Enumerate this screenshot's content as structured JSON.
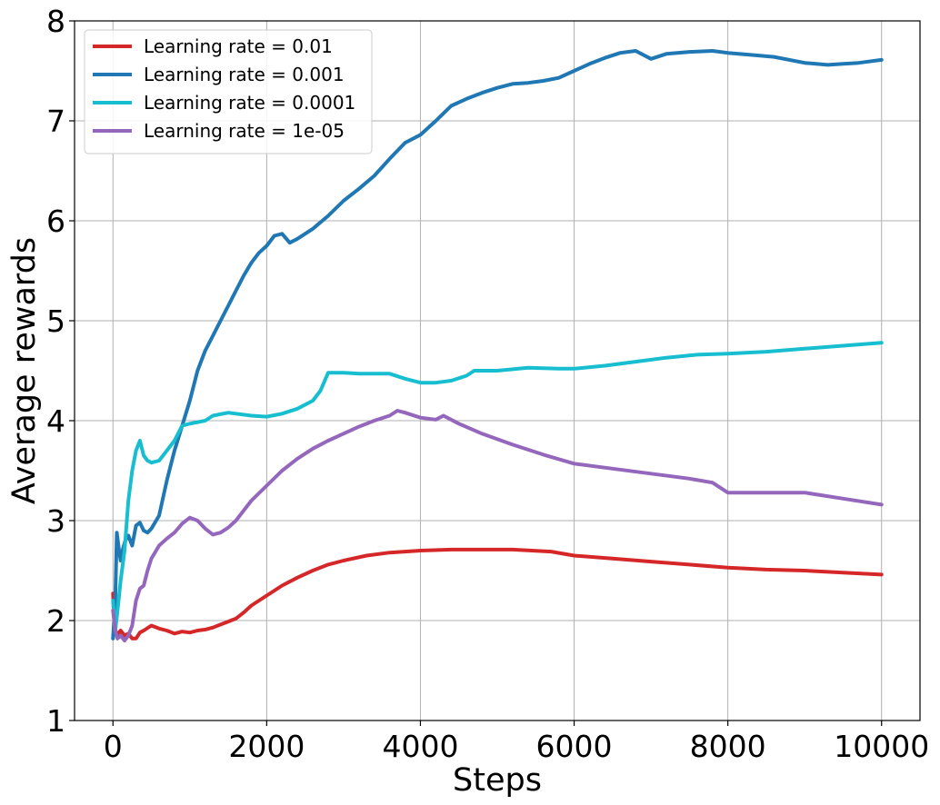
{
  "chart_data": {
    "type": "line",
    "title": "",
    "xlabel": "Steps",
    "ylabel": "Average rewards",
    "xlim": [
      -500,
      10500
    ],
    "ylim": [
      1,
      8
    ],
    "xticks": [
      0,
      2000,
      4000,
      6000,
      8000,
      10000
    ],
    "xtick_labels": [
      "0",
      "2000",
      "4000",
      "6000",
      "8000",
      "10000"
    ],
    "yticks": [
      1,
      2,
      3,
      4,
      5,
      6,
      7,
      8
    ],
    "ytick_labels": [
      "1",
      "2",
      "3",
      "4",
      "5",
      "6",
      "7",
      "8"
    ],
    "grid": true,
    "legend_position": "top-left",
    "series": [
      {
        "name": "Learning rate = 0.01",
        "color": "#d62728",
        "points": [
          [
            0,
            2.27
          ],
          [
            20,
            1.95
          ],
          [
            50,
            1.85
          ],
          [
            100,
            1.9
          ],
          [
            150,
            1.85
          ],
          [
            200,
            1.87
          ],
          [
            250,
            1.82
          ],
          [
            300,
            1.82
          ],
          [
            350,
            1.88
          ],
          [
            400,
            1.9
          ],
          [
            500,
            1.95
          ],
          [
            600,
            1.92
          ],
          [
            700,
            1.9
          ],
          [
            800,
            1.87
          ],
          [
            900,
            1.89
          ],
          [
            1000,
            1.88
          ],
          [
            1100,
            1.9
          ],
          [
            1200,
            1.91
          ],
          [
            1300,
            1.93
          ],
          [
            1400,
            1.96
          ],
          [
            1500,
            1.99
          ],
          [
            1600,
            2.02
          ],
          [
            1700,
            2.08
          ],
          [
            1800,
            2.15
          ],
          [
            1900,
            2.2
          ],
          [
            2000,
            2.25
          ],
          [
            2200,
            2.35
          ],
          [
            2400,
            2.43
          ],
          [
            2600,
            2.5
          ],
          [
            2800,
            2.56
          ],
          [
            3000,
            2.6
          ],
          [
            3300,
            2.65
          ],
          [
            3600,
            2.68
          ],
          [
            4000,
            2.7
          ],
          [
            4400,
            2.71
          ],
          [
            4800,
            2.71
          ],
          [
            5200,
            2.71
          ],
          [
            5700,
            2.69
          ],
          [
            6000,
            2.65
          ],
          [
            6500,
            2.62
          ],
          [
            7000,
            2.59
          ],
          [
            7500,
            2.56
          ],
          [
            8000,
            2.53
          ],
          [
            8500,
            2.51
          ],
          [
            9000,
            2.5
          ],
          [
            9500,
            2.48
          ],
          [
            10000,
            2.46
          ]
        ]
      },
      {
        "name": "Learning rate = 0.001",
        "color": "#1f77b4",
        "points": [
          [
            0,
            1.82
          ],
          [
            30,
            2.2
          ],
          [
            50,
            2.88
          ],
          [
            80,
            2.7
          ],
          [
            100,
            2.6
          ],
          [
            130,
            2.72
          ],
          [
            160,
            2.8
          ],
          [
            200,
            2.85
          ],
          [
            250,
            2.75
          ],
          [
            300,
            2.95
          ],
          [
            350,
            2.98
          ],
          [
            400,
            2.9
          ],
          [
            450,
            2.88
          ],
          [
            500,
            2.92
          ],
          [
            600,
            3.05
          ],
          [
            700,
            3.4
          ],
          [
            800,
            3.7
          ],
          [
            900,
            3.95
          ],
          [
            1000,
            4.2
          ],
          [
            1100,
            4.5
          ],
          [
            1200,
            4.7
          ],
          [
            1300,
            4.85
          ],
          [
            1400,
            5.0
          ],
          [
            1500,
            5.15
          ],
          [
            1600,
            5.3
          ],
          [
            1700,
            5.45
          ],
          [
            1800,
            5.58
          ],
          [
            1900,
            5.68
          ],
          [
            2000,
            5.75
          ],
          [
            2100,
            5.85
          ],
          [
            2200,
            5.87
          ],
          [
            2300,
            5.78
          ],
          [
            2400,
            5.82
          ],
          [
            2600,
            5.92
          ],
          [
            2800,
            6.05
          ],
          [
            3000,
            6.2
          ],
          [
            3200,
            6.32
          ],
          [
            3400,
            6.45
          ],
          [
            3600,
            6.62
          ],
          [
            3800,
            6.78
          ],
          [
            4000,
            6.86
          ],
          [
            4200,
            7.0
          ],
          [
            4400,
            7.15
          ],
          [
            4600,
            7.22
          ],
          [
            4800,
            7.28
          ],
          [
            5000,
            7.33
          ],
          [
            5200,
            7.37
          ],
          [
            5400,
            7.38
          ],
          [
            5600,
            7.4
          ],
          [
            5800,
            7.43
          ],
          [
            6000,
            7.5
          ],
          [
            6200,
            7.57
          ],
          [
            6400,
            7.63
          ],
          [
            6600,
            7.68
          ],
          [
            6800,
            7.7
          ],
          [
            7000,
            7.62
          ],
          [
            7200,
            7.67
          ],
          [
            7500,
            7.69
          ],
          [
            7800,
            7.7
          ],
          [
            8000,
            7.68
          ],
          [
            8300,
            7.66
          ],
          [
            8600,
            7.64
          ],
          [
            9000,
            7.58
          ],
          [
            9300,
            7.56
          ],
          [
            9500,
            7.57
          ],
          [
            9700,
            7.58
          ],
          [
            10000,
            7.61
          ]
        ]
      },
      {
        "name": "Learning rate = 0.0001",
        "color": "#17becf",
        "points": [
          [
            0,
            2.2
          ],
          [
            30,
            1.9
          ],
          [
            60,
            2.1
          ],
          [
            100,
            2.4
          ],
          [
            150,
            2.7
          ],
          [
            200,
            3.2
          ],
          [
            250,
            3.5
          ],
          [
            300,
            3.7
          ],
          [
            350,
            3.8
          ],
          [
            400,
            3.65
          ],
          [
            450,
            3.6
          ],
          [
            500,
            3.58
          ],
          [
            600,
            3.6
          ],
          [
            700,
            3.7
          ],
          [
            800,
            3.8
          ],
          [
            900,
            3.95
          ],
          [
            1000,
            3.97
          ],
          [
            1200,
            4.0
          ],
          [
            1300,
            4.05
          ],
          [
            1500,
            4.08
          ],
          [
            1600,
            4.07
          ],
          [
            1800,
            4.05
          ],
          [
            2000,
            4.04
          ],
          [
            2200,
            4.07
          ],
          [
            2400,
            4.12
          ],
          [
            2600,
            4.2
          ],
          [
            2700,
            4.3
          ],
          [
            2800,
            4.48
          ],
          [
            3000,
            4.48
          ],
          [
            3200,
            4.47
          ],
          [
            3600,
            4.47
          ],
          [
            3800,
            4.42
          ],
          [
            4000,
            4.38
          ],
          [
            4200,
            4.38
          ],
          [
            4400,
            4.4
          ],
          [
            4600,
            4.45
          ],
          [
            4700,
            4.5
          ],
          [
            5000,
            4.5
          ],
          [
            5400,
            4.53
          ],
          [
            5800,
            4.52
          ],
          [
            6000,
            4.52
          ],
          [
            6400,
            4.55
          ],
          [
            6800,
            4.59
          ],
          [
            7200,
            4.63
          ],
          [
            7600,
            4.66
          ],
          [
            8000,
            4.67
          ],
          [
            8500,
            4.69
          ],
          [
            9000,
            4.72
          ],
          [
            9500,
            4.75
          ],
          [
            10000,
            4.78
          ]
        ]
      },
      {
        "name": "Learning rate = 1e-05",
        "color": "#9467bd",
        "points": [
          [
            0,
            2.1
          ],
          [
            30,
            1.9
          ],
          [
            60,
            1.82
          ],
          [
            100,
            1.85
          ],
          [
            150,
            1.8
          ],
          [
            200,
            1.85
          ],
          [
            250,
            1.95
          ],
          [
            300,
            2.2
          ],
          [
            350,
            2.32
          ],
          [
            400,
            2.35
          ],
          [
            450,
            2.5
          ],
          [
            500,
            2.62
          ],
          [
            600,
            2.75
          ],
          [
            700,
            2.82
          ],
          [
            800,
            2.88
          ],
          [
            900,
            2.97
          ],
          [
            1000,
            3.03
          ],
          [
            1100,
            3.0
          ],
          [
            1200,
            2.92
          ],
          [
            1300,
            2.86
          ],
          [
            1400,
            2.88
          ],
          [
            1500,
            2.93
          ],
          [
            1600,
            3.0
          ],
          [
            1700,
            3.1
          ],
          [
            1800,
            3.2
          ],
          [
            2000,
            3.35
          ],
          [
            2200,
            3.5
          ],
          [
            2400,
            3.62
          ],
          [
            2600,
            3.72
          ],
          [
            2800,
            3.8
          ],
          [
            3000,
            3.87
          ],
          [
            3200,
            3.94
          ],
          [
            3400,
            4.0
          ],
          [
            3600,
            4.05
          ],
          [
            3700,
            4.1
          ],
          [
            3800,
            4.08
          ],
          [
            4000,
            4.03
          ],
          [
            4200,
            4.01
          ],
          [
            4300,
            4.05
          ],
          [
            4500,
            3.97
          ],
          [
            4800,
            3.87
          ],
          [
            5200,
            3.76
          ],
          [
            5600,
            3.66
          ],
          [
            6000,
            3.57
          ],
          [
            6500,
            3.52
          ],
          [
            7000,
            3.47
          ],
          [
            7500,
            3.42
          ],
          [
            7800,
            3.38
          ],
          [
            8000,
            3.28
          ],
          [
            8500,
            3.28
          ],
          [
            9000,
            3.28
          ],
          [
            9500,
            3.22
          ],
          [
            10000,
            3.16
          ]
        ]
      }
    ]
  }
}
